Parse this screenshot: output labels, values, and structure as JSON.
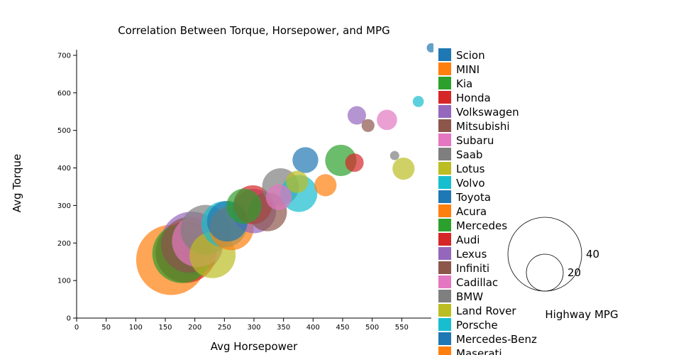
{
  "chart_data": {
    "type": "scatter",
    "title": "Correlation Between Torque, Horsepower, and MPG",
    "xlabel": "Avg Horsepower",
    "ylabel": "Avg Torque",
    "xlim": [
      0,
      600
    ],
    "ylim": [
      0,
      720
    ],
    "x_ticks": [
      "0",
      "50",
      "100",
      "150",
      "200",
      "250",
      "300",
      "350",
      "400",
      "450",
      "500",
      "550"
    ],
    "y_ticks": [
      "0",
      "100",
      "200",
      "300",
      "400",
      "500",
      "600",
      "700"
    ],
    "size_legend": {
      "title": "Highway MPG",
      "values": [
        40,
        20
      ],
      "labels": [
        "40",
        "20"
      ]
    },
    "grid": false,
    "legend_position": "right",
    "series": [
      {
        "name": "Scion",
        "color": "#1f77b4",
        "points": [
          {
            "x": 600,
            "y": 720,
            "mpg": 5
          }
        ]
      },
      {
        "name": "MINI",
        "color": "#ff7f0e",
        "points": [
          {
            "x": 160,
            "y": 155,
            "mpg": 38
          },
          {
            "x": 262,
            "y": 240,
            "mpg": 24
          }
        ]
      },
      {
        "name": "Kia",
        "color": "#2ca02c",
        "points": [
          {
            "x": 178,
            "y": 172,
            "mpg": 32
          }
        ]
      },
      {
        "name": "Honda",
        "color": "#d62728",
        "points": [
          {
            "x": 185,
            "y": 175,
            "mpg": 33
          }
        ]
      },
      {
        "name": "Volkswagen",
        "color": "#9467bd",
        "points": [
          {
            "x": 195,
            "y": 200,
            "mpg": 34
          }
        ]
      },
      {
        "name": "Mitsubishi",
        "color": "#8c564b",
        "points": [
          {
            "x": 190,
            "y": 195,
            "mpg": 30
          }
        ]
      },
      {
        "name": "Subaru",
        "color": "#e377c2",
        "points": [
          {
            "x": 205,
            "y": 205,
            "mpg": 28
          }
        ]
      },
      {
        "name": "Saab",
        "color": "#7f7f7f",
        "points": [
          {
            "x": 538,
            "y": 433,
            "mpg": 5
          }
        ]
      },
      {
        "name": "Lotus",
        "color": "#bcbd22",
        "points": [
          {
            "x": 553,
            "y": 398,
            "mpg": 12
          }
        ]
      },
      {
        "name": "Volvo",
        "color": "#17becf",
        "points": [
          {
            "x": 578,
            "y": 577,
            "mpg": 6
          }
        ]
      },
      {
        "name": "Toyota",
        "color": "#1f77b4",
        "points": [
          {
            "x": 387,
            "y": 421,
            "mpg": 14
          }
        ]
      },
      {
        "name": "Acura",
        "color": "#ff7f0e",
        "points": [
          {
            "x": 421,
            "y": 354,
            "mpg": 12
          }
        ]
      },
      {
        "name": "Mercedes",
        "color": "#2ca02c",
        "points": [
          {
            "x": 447,
            "y": 420,
            "mpg": 17
          }
        ]
      },
      {
        "name": "Audi",
        "color": "#d62728",
        "points": [
          {
            "x": 470,
            "y": 414,
            "mpg": 10
          }
        ]
      },
      {
        "name": "Lexus",
        "color": "#9467bd",
        "points": [
          {
            "x": 474,
            "y": 540,
            "mpg": 10
          }
        ]
      },
      {
        "name": "Infiniti",
        "color": "#8c564b",
        "points": [
          {
            "x": 493,
            "y": 513,
            "mpg": 7
          }
        ]
      },
      {
        "name": "Cadillac",
        "color": "#e377c2",
        "points": [
          {
            "x": 525,
            "y": 528,
            "mpg": 11
          }
        ]
      },
      {
        "name": "BMW",
        "color": "#7f7f7f",
        "points": [
          {
            "x": 218,
            "y": 235,
            "mpg": 27
          },
          {
            "x": 345,
            "y": 350,
            "mpg": 20
          }
        ]
      },
      {
        "name": "Land Rover",
        "color": "#bcbd22",
        "points": [
          {
            "x": 230,
            "y": 168,
            "mpg": 25
          },
          {
            "x": 373,
            "y": 363,
            "mpg": 12
          }
        ]
      },
      {
        "name": "Porsche",
        "color": "#17becf",
        "points": [
          {
            "x": 250,
            "y": 250,
            "mpg": 25
          },
          {
            "x": 376,
            "y": 332,
            "mpg": 20
          }
        ]
      },
      {
        "name": "Mercedes-Benz",
        "color": "#1f77b4",
        "points": [
          {
            "x": 255,
            "y": 258,
            "mpg": 22
          }
        ]
      },
      {
        "name": "Maserati",
        "color": "#ff7f0e",
        "points": []
      },
      {
        "name": "",
        "color": "#2ca02c",
        "points": [
          {
            "x": 283,
            "y": 298,
            "mpg": 19
          }
        ]
      },
      {
        "name": "",
        "color": "#d62728",
        "points": [
          {
            "x": 298,
            "y": 302,
            "mpg": 21
          }
        ]
      },
      {
        "name": "",
        "color": "#9467bd",
        "points": [
          {
            "x": 300,
            "y": 285,
            "mpg": 24
          }
        ]
      },
      {
        "name": "",
        "color": "#8c564b",
        "points": [
          {
            "x": 323,
            "y": 283,
            "mpg": 21
          }
        ]
      },
      {
        "name": "",
        "color": "#e377c2",
        "points": [
          {
            "x": 342,
            "y": 322,
            "mpg": 14
          }
        ]
      }
    ]
  }
}
